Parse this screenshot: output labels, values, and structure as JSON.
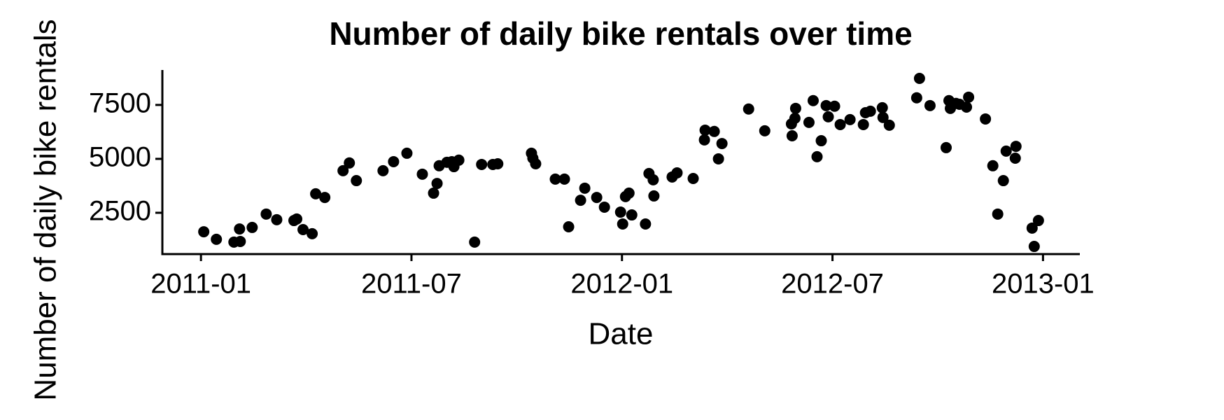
{
  "chart_data": {
    "type": "scatter",
    "title": "Number of daily bike rentals over time",
    "x_label": "Date",
    "y_label": "Number of daily bike rentals",
    "color": "#000000",
    "grid": false,
    "xlim": [
      -1.1,
      25.05
    ],
    "xticks": [
      {
        "value": 0,
        "label": "2011-01"
      },
      {
        "value": 6,
        "label": "2011-07"
      },
      {
        "value": 12,
        "label": "2012-01"
      },
      {
        "value": 18,
        "label": "2012-07"
      },
      {
        "value": 24,
        "label": "2013-01"
      }
    ],
    "ylim": [
      584,
      9120
    ],
    "yticks": [
      2500,
      5000,
      7500
    ],
    "x": [
      0.08,
      0.44,
      0.94,
      1.12,
      1.1,
      1.46,
      1.86,
      2.16,
      2.65,
      2.73,
      2.91,
      3.17,
      3.27,
      3.53,
      4.05,
      4.23,
      4.43,
      5.19,
      5.49,
      5.87,
      6.31,
      6.63,
      6.73,
      6.79,
      7.01,
      7.21,
      7.15,
      7.35,
      7.8,
      8.0,
      8.32,
      8.46,
      9.42,
      9.46,
      9.54,
      10.1,
      10.36,
      10.48,
      10.82,
      10.94,
      11.28,
      11.5,
      11.96,
      12.02,
      12.1,
      12.2,
      12.28,
      12.67,
      12.77,
      12.89,
      12.91,
      13.43,
      13.57,
      14.03,
      14.35,
      14.37,
      14.63,
      14.75,
      14.85,
      15.61,
      16.07,
      16.83,
      16.85,
      16.93,
      16.95,
      17.33,
      17.45,
      17.56,
      17.68,
      17.82,
      17.88,
      18.06,
      18.22,
      18.5,
      18.88,
      18.94,
      19.08,
      19.42,
      19.44,
      19.62,
      20.4,
      20.48,
      20.78,
      21.24,
      21.32,
      21.36,
      21.52,
      21.62,
      21.82,
      21.88,
      22.36,
      22.57,
      22.71,
      22.87,
      22.95,
      23.21,
      23.23,
      23.69,
      23.75,
      23.87
    ],
    "values": [
      1620,
      1270,
      1140,
      1170,
      1750,
      1820,
      2440,
      2180,
      2140,
      2210,
      1720,
      1530,
      3380,
      3210,
      4450,
      4810,
      3990,
      4450,
      4870,
      5260,
      4290,
      3410,
      3860,
      4680,
      4840,
      4640,
      4870,
      4940,
      1140,
      4740,
      4740,
      4770,
      5260,
      5030,
      4770,
      4060,
      4060,
      1850,
      3080,
      3640,
      3210,
      2760,
      2530,
      1980,
      3250,
      3410,
      2400,
      1980,
      4320,
      4030,
      3280,
      4160,
      4350,
      4090,
      5880,
      6330,
      6270,
      5000,
      5710,
      7310,
      6300,
      6620,
      6070,
      6880,
      7340,
      6690,
      7700,
      5100,
      5840,
      7470,
      6950,
      7440,
      6590,
      6820,
      6590,
      7140,
      7210,
      7370,
      6920,
      6560,
      7830,
      8730,
      7470,
      5520,
      7700,
      7340,
      7570,
      7530,
      7400,
      7860,
      6850,
      4680,
      2440,
      3990,
      5360,
      5030,
      5580,
      1790,
      940,
      2140
    ]
  }
}
